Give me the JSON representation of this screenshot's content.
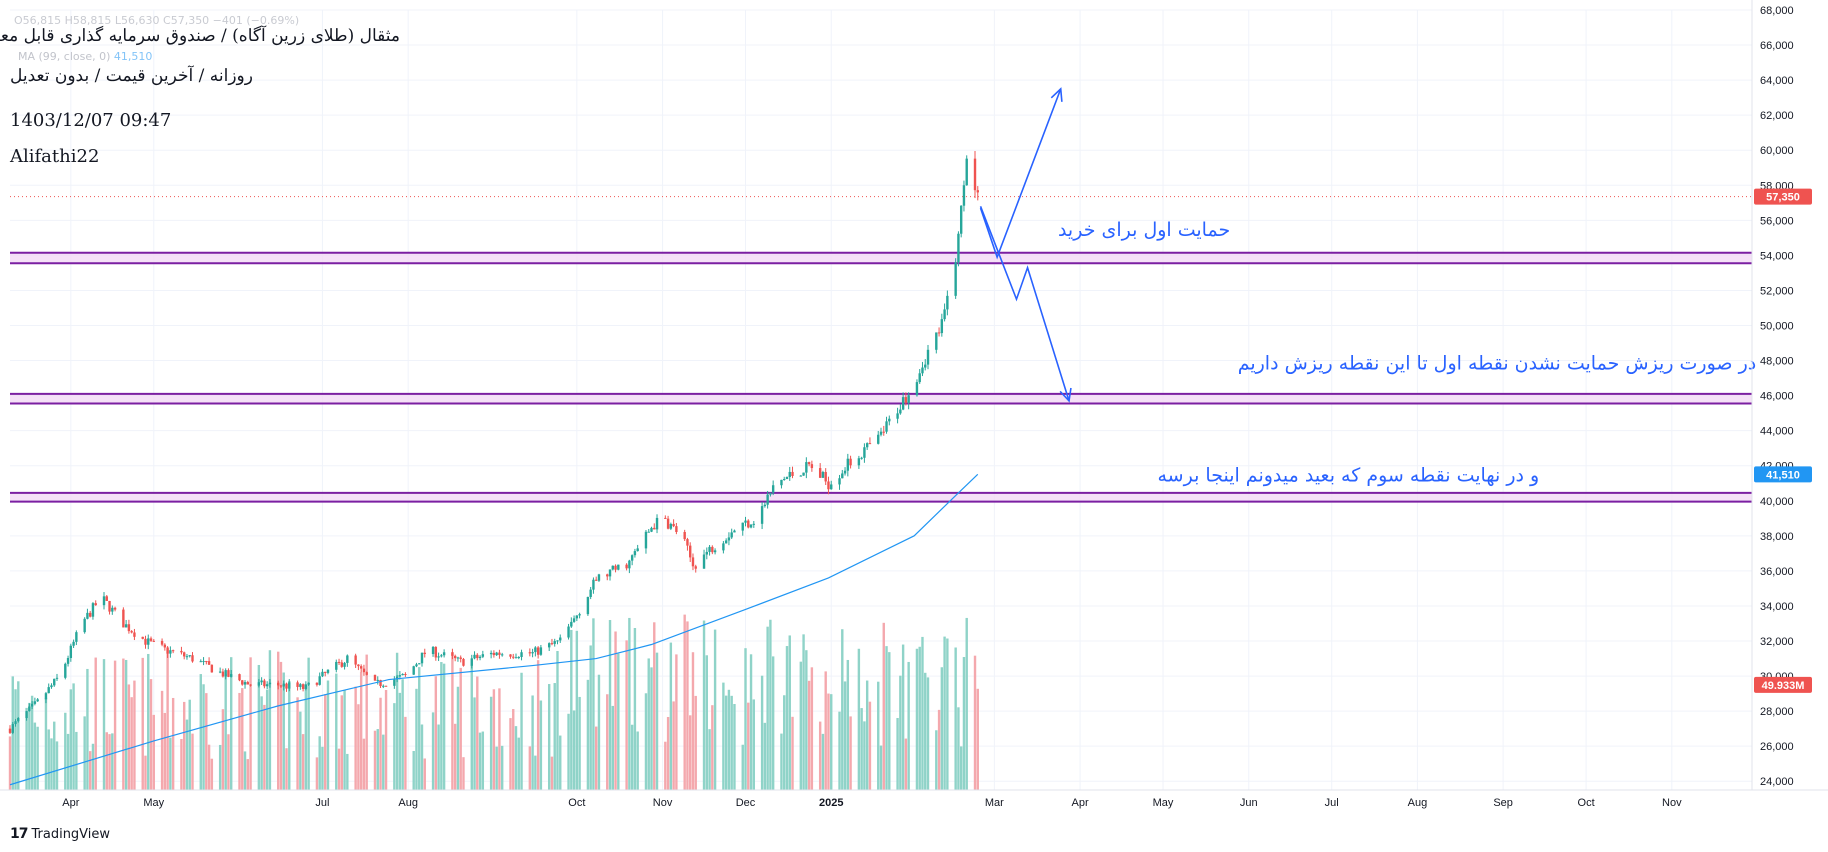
{
  "header": {
    "ohlc": "O56,815 H58,815 L56,630 C57,350 −401 (−0.69%)",
    "ma_label": "MA (99, close, 0)",
    "ma_value": "41,510",
    "title": "مثقال (طلای زرین آگاه) / صندوق سرمایه گذاری قابل معامله",
    "subtitle": "روزانه / آخرین قیمت / بدون تعدیل",
    "datetime": "1403/12/07 09:47",
    "author": "Alifathi22"
  },
  "footer": {
    "logo": "17",
    "brand": "TradingView"
  },
  "colors": {
    "up": "#26a69a",
    "down": "#ef5350",
    "vol_up": "#8fd3c8",
    "vol_down": "#f4a8ad",
    "ma": "#2196f3",
    "zone_line": "#7b1fa2",
    "zone_fill": "#f3d9f5",
    "annotation": "#2962ff",
    "grid": "#f0f3fa",
    "axis_text": "#131722"
  },
  "chart_data": {
    "type": "candlestick",
    "y_axis": {
      "range": [
        23500,
        68000
      ],
      "ticks": [
        24000,
        26000,
        28000,
        30000,
        32000,
        34000,
        36000,
        38000,
        40000,
        42000,
        44000,
        46000,
        48000,
        50000,
        52000,
        54000,
        56000,
        58000,
        60000,
        62000,
        64000,
        66000,
        68000
      ],
      "tick_labels": [
        "24,000",
        "26,000",
        "28,000",
        "30,000",
        "32,000",
        "34,000",
        "36,000",
        "38,000",
        "40,000",
        "42,000",
        "44,000",
        "46,000",
        "48,000",
        "50,000",
        "52,000",
        "54,000",
        "56,000",
        "58,000",
        "60,000",
        "62,000",
        "64,000",
        "66,000",
        "68,000"
      ]
    },
    "x_axis": {
      "start_date": "2024-03-10",
      "end_date": "2025-11-30",
      "month_labels": [
        {
          "date": "2024-04-01",
          "label": "Apr",
          "bold": false
        },
        {
          "date": "2024-05-01",
          "label": "May",
          "bold": false
        },
        {
          "date": "2024-07-01",
          "label": "Jul",
          "bold": false
        },
        {
          "date": "2024-08-01",
          "label": "Aug",
          "bold": false
        },
        {
          "date": "2024-10-01",
          "label": "Oct",
          "bold": false
        },
        {
          "date": "2024-11-01",
          "label": "Nov",
          "bold": false
        },
        {
          "date": "2024-12-01",
          "label": "Dec",
          "bold": false
        },
        {
          "date": "2025-01-01",
          "label": "2025",
          "bold": true
        },
        {
          "date": "2025-03-01",
          "label": "Mar",
          "bold": false
        },
        {
          "date": "2025-04-01",
          "label": "Apr",
          "bold": false
        },
        {
          "date": "2025-05-01",
          "label": "May",
          "bold": false
        },
        {
          "date": "2025-06-01",
          "label": "Jun",
          "bold": false
        },
        {
          "date": "2025-07-01",
          "label": "Jul",
          "bold": false
        },
        {
          "date": "2025-08-01",
          "label": "Aug",
          "bold": false
        },
        {
          "date": "2025-09-01",
          "label": "Sep",
          "bold": false
        },
        {
          "date": "2025-10-01",
          "label": "Oct",
          "bold": false
        },
        {
          "date": "2025-11-01",
          "label": "Nov",
          "bold": false
        }
      ]
    },
    "price_path": [
      [
        "2024-03-10",
        27000
      ],
      [
        "2024-03-20",
        28500
      ],
      [
        "2024-03-28",
        30000
      ],
      [
        "2024-04-05",
        33000
      ],
      [
        "2024-04-12",
        34500
      ],
      [
        "2024-04-20",
        33000
      ],
      [
        "2024-04-28",
        32000
      ],
      [
        "2024-05-05",
        31500
      ],
      [
        "2024-05-15",
        31000
      ],
      [
        "2024-05-25",
        30200
      ],
      [
        "2024-06-05",
        29500
      ],
      [
        "2024-06-15",
        29500
      ],
      [
        "2024-06-25",
        29300
      ],
      [
        "2024-07-01",
        30000
      ],
      [
        "2024-07-10",
        31000
      ],
      [
        "2024-07-20",
        29500
      ],
      [
        "2024-07-31",
        30000
      ],
      [
        "2024-08-08",
        31500
      ],
      [
        "2024-08-20",
        30800
      ],
      [
        "2024-09-01",
        31300
      ],
      [
        "2024-09-15",
        31300
      ],
      [
        "2024-09-25",
        32000
      ],
      [
        "2024-10-01",
        33500
      ],
      [
        "2024-10-08",
        35500
      ],
      [
        "2024-10-20",
        36500
      ],
      [
        "2024-10-28",
        38500
      ],
      [
        "2024-11-01",
        39000
      ],
      [
        "2024-11-08",
        38000
      ],
      [
        "2024-11-12",
        36300
      ],
      [
        "2024-11-20",
        37500
      ],
      [
        "2024-11-28",
        38500
      ],
      [
        "2024-12-05",
        39000
      ],
      [
        "2024-12-12",
        41000
      ],
      [
        "2024-12-18",
        41500
      ],
      [
        "2024-12-24",
        42000
      ],
      [
        "2024-12-31",
        41000
      ],
      [
        "2025-01-10",
        42500
      ],
      [
        "2025-01-18",
        43500
      ],
      [
        "2025-01-24",
        45000
      ],
      [
        "2025-01-30",
        46500
      ],
      [
        "2025-02-05",
        48500
      ],
      [
        "2025-02-10",
        50000
      ],
      [
        "2025-02-14",
        53000
      ],
      [
        "2025-02-16",
        55000
      ],
      [
        "2025-02-19",
        60000
      ],
      [
        "2025-02-21",
        58000
      ],
      [
        "2025-02-23",
        57350
      ]
    ],
    "ma_path": [
      [
        "2024-03-10",
        23800
      ],
      [
        "2024-05-01",
        26300
      ],
      [
        "2024-06-15",
        28300
      ],
      [
        "2024-07-25",
        29800
      ],
      [
        "2024-09-15",
        30600
      ],
      [
        "2024-10-08",
        31000
      ],
      [
        "2024-10-28",
        31800
      ],
      [
        "2024-12-01",
        33800
      ],
      [
        "2024-12-31",
        35600
      ],
      [
        "2025-01-31",
        38000
      ],
      [
        "2025-02-15",
        40300
      ],
      [
        "2025-02-23",
        41510
      ]
    ],
    "volume_scale_max": 110000000,
    "last_price": 57350,
    "last_price_label": "57,350",
    "ma_last": 41510,
    "ma_last_label": "41,510",
    "volume_last_label": "49.933M",
    "support_zones": [
      {
        "name": "zone-54000",
        "low": 53550,
        "high": 54150
      },
      {
        "name": "zone-46000",
        "low": 45550,
        "high": 46100
      },
      {
        "name": "zone-40000",
        "low": 39950,
        "high": 40450
      }
    ],
    "annotations": [
      {
        "text": "حمایت اول برای خرید",
        "date": "2025-03-24",
        "price": 55100
      },
      {
        "text": "در صورت ریزش حمایت نشدن نقطه اول تا این نقطه ریزش داریم",
        "date": "2025-05-28",
        "price": 47500
      },
      {
        "text": "و در نهایت نقطه سوم که بعید میدونم اینجا برسه",
        "date": "2025-04-29",
        "price": 41100
      }
    ],
    "scenario_up": [
      [
        "2025-02-24",
        56700
      ],
      [
        "2025-03-02",
        53900
      ],
      [
        "2025-03-25",
        63500
      ]
    ],
    "scenario_down": [
      [
        "2025-02-24",
        56800
      ],
      [
        "2025-03-09",
        51500
      ],
      [
        "2025-03-13",
        53300
      ],
      [
        "2025-03-28",
        45700
      ]
    ]
  }
}
